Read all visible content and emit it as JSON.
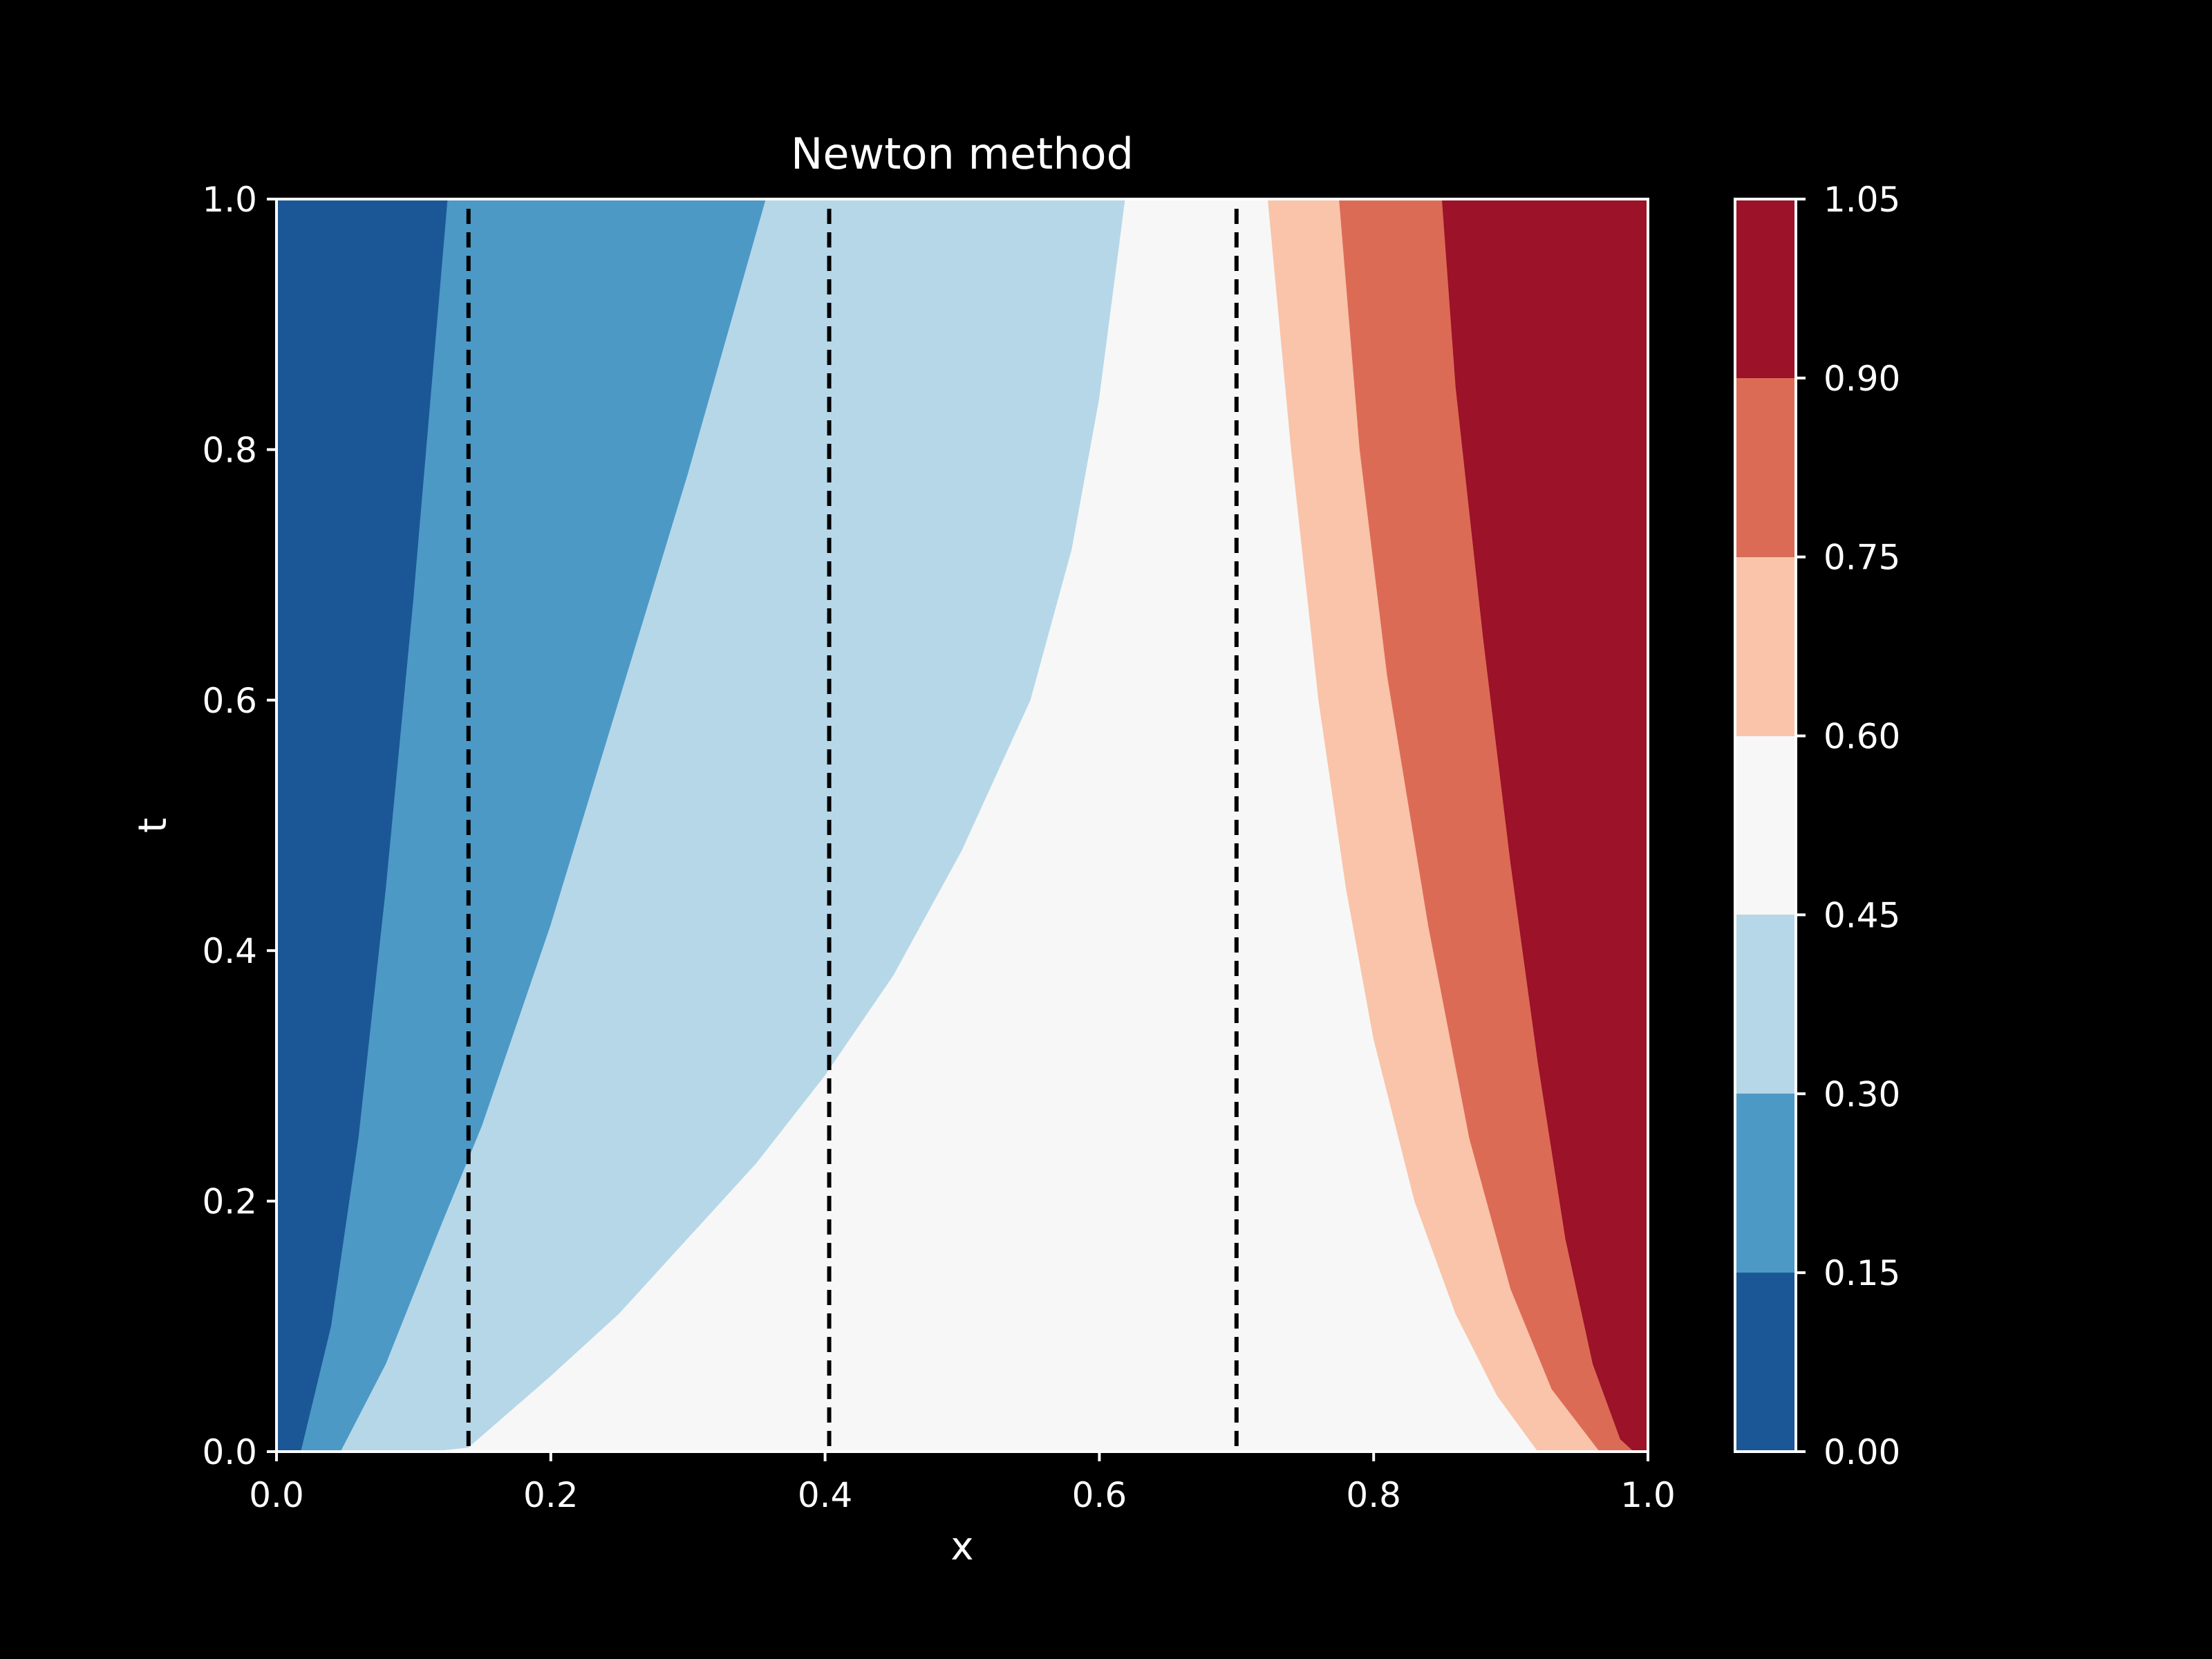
{
  "chart_data": {
    "type": "heatmap",
    "subtype": "filled-contour",
    "title": "Newton method",
    "xlabel": "x",
    "ylabel": "t",
    "xlim": [
      0.0,
      1.0
    ],
    "ylim": [
      0.0,
      1.0
    ],
    "x_ticks": [
      "0.0",
      "0.2",
      "0.4",
      "0.6",
      "0.8",
      "1.0"
    ],
    "y_ticks": [
      "0.0",
      "0.2",
      "0.4",
      "0.6",
      "0.8",
      "1.0"
    ],
    "grid": false,
    "colorbar": {
      "levels": [
        0.0,
        0.15,
        0.3,
        0.45,
        0.6,
        0.75,
        0.9,
        1.05
      ],
      "tick_labels": [
        "0.00",
        "0.15",
        "0.30",
        "0.45",
        "0.60",
        "0.75",
        "0.90",
        "1.05"
      ],
      "colors": [
        "#1b5796",
        "#4c99c6",
        "#b6d7e8",
        "#f7f7f7",
        "#f9c4a9",
        "#dc6b56",
        "#9b1229"
      ]
    },
    "contour_boundaries": [
      {
        "level": 0.15,
        "points": [
          [
            0.018,
            0.0
          ],
          [
            0.04,
            0.1
          ],
          [
            0.06,
            0.25
          ],
          [
            0.08,
            0.45
          ],
          [
            0.1,
            0.68
          ],
          [
            0.125,
            1.0
          ]
        ]
      },
      {
        "level": 0.3,
        "points": [
          [
            0.047,
            0.0
          ],
          [
            0.08,
            0.07
          ],
          [
            0.12,
            0.18
          ],
          [
            0.15,
            0.26
          ],
          [
            0.2,
            0.42
          ],
          [
            0.25,
            0.6
          ],
          [
            0.3,
            0.78
          ],
          [
            0.357,
            1.0
          ]
        ]
      },
      {
        "level": 0.45,
        "points": [
          [
            0.115,
            0.0
          ],
          [
            0.14,
            0.003
          ],
          [
            0.2,
            0.06
          ],
          [
            0.25,
            0.11
          ],
          [
            0.3,
            0.17
          ],
          [
            0.35,
            0.23
          ],
          [
            0.4,
            0.3
          ],
          [
            0.45,
            0.38
          ],
          [
            0.5,
            0.48
          ],
          [
            0.55,
            0.6
          ],
          [
            0.58,
            0.72
          ],
          [
            0.6,
            0.84
          ],
          [
            0.619,
            1.0
          ]
        ]
      },
      {
        "level": 0.6,
        "points": [
          [
            0.723,
            1.0
          ],
          [
            0.74,
            0.8
          ],
          [
            0.76,
            0.6
          ],
          [
            0.78,
            0.45
          ],
          [
            0.8,
            0.33
          ],
          [
            0.83,
            0.2
          ],
          [
            0.86,
            0.11
          ],
          [
            0.89,
            0.045
          ],
          [
            0.92,
            0.0
          ]
        ]
      },
      {
        "level": 0.75,
        "points": [
          [
            0.775,
            1.0
          ],
          [
            0.79,
            0.8
          ],
          [
            0.81,
            0.62
          ],
          [
            0.84,
            0.42
          ],
          [
            0.87,
            0.25
          ],
          [
            0.9,
            0.13
          ],
          [
            0.93,
            0.05
          ],
          [
            0.965,
            0.0
          ]
        ]
      },
      {
        "level": 0.9,
        "points": [
          [
            0.85,
            1.0
          ],
          [
            0.86,
            0.85
          ],
          [
            0.88,
            0.65
          ],
          [
            0.9,
            0.47
          ],
          [
            0.92,
            0.31
          ],
          [
            0.94,
            0.17
          ],
          [
            0.96,
            0.07
          ],
          [
            0.98,
            0.01
          ],
          [
            0.99,
            0.0
          ]
        ]
      }
    ],
    "vertical_lines": {
      "style": "dashed",
      "color": "#000000",
      "x": [
        0.14,
        0.403,
        0.7
      ]
    }
  }
}
